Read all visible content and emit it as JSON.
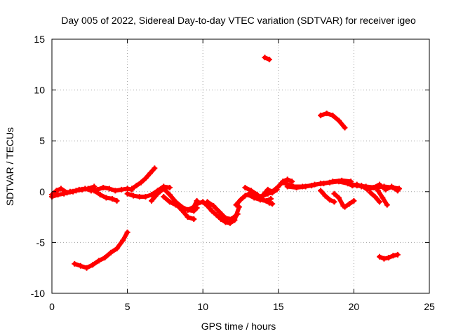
{
  "chart_data": {
    "type": "scatter",
    "title": "Day 005 of 2022, Sidereal Day-to-day VTEC variation (SDTVAR) for receiver igeo",
    "xlabel": "GPS time / hours",
    "ylabel": "SDTVAR / TECUs",
    "xlim": [
      0,
      25
    ],
    "ylim": [
      -10,
      15
    ],
    "xticks": [
      "0",
      "5",
      "10",
      "15",
      "20",
      "25"
    ],
    "yticks": [
      "-10",
      "-5",
      "0",
      "5",
      "10",
      "15"
    ],
    "grid": true,
    "series_color": "#ff0000",
    "series": [
      {
        "name": "s1",
        "x": [
          0.0,
          0.3,
          0.6,
          1.0,
          1.4,
          1.8,
          2.2,
          2.6,
          3.0,
          3.4,
          3.8,
          4.2,
          4.6,
          5.0,
          5.3
        ],
        "y": [
          -0.3,
          0.1,
          0.3,
          -0.1,
          0.0,
          0.2,
          0.3,
          0.1,
          0.2,
          0.4,
          0.3,
          0.1,
          0.2,
          0.3,
          0.2
        ]
      },
      {
        "name": "s2",
        "x": [
          0.0,
          0.4,
          0.8,
          1.2,
          1.6,
          2.0,
          2.4,
          2.8
        ],
        "y": [
          -0.5,
          -0.3,
          -0.2,
          0.0,
          0.1,
          0.2,
          0.3,
          0.5
        ]
      },
      {
        "name": "s3",
        "x": [
          2.8,
          3.2,
          3.6,
          4.0,
          4.3
        ],
        "y": [
          0.1,
          -0.3,
          -0.6,
          -0.7,
          -0.9
        ]
      },
      {
        "name": "s4",
        "x": [
          1.5,
          1.9,
          2.3,
          2.7,
          3.1,
          3.5,
          3.9,
          4.3,
          4.7,
          5.0
        ],
        "y": [
          -7.1,
          -7.3,
          -7.5,
          -7.2,
          -6.8,
          -6.5,
          -6.0,
          -5.6,
          -4.8,
          -4.0
        ]
      },
      {
        "name": "s5",
        "x": [
          5.3,
          5.6,
          5.9,
          6.2,
          6.5,
          6.8
        ],
        "y": [
          0.3,
          0.6,
          0.9,
          1.3,
          1.8,
          2.3
        ]
      },
      {
        "name": "s6",
        "x": [
          5.0,
          5.4,
          5.8,
          6.2,
          6.6,
          7.0,
          7.4,
          7.8
        ],
        "y": [
          -0.2,
          -0.4,
          -0.5,
          -0.5,
          -0.3,
          0.1,
          0.5,
          0.4
        ]
      },
      {
        "name": "s7",
        "x": [
          6.6,
          7.0,
          7.4,
          7.8,
          8.2,
          8.6,
          9.0,
          9.4,
          9.6
        ],
        "y": [
          -0.9,
          -0.2,
          0.3,
          -0.3,
          -1.0,
          -1.5,
          -1.8,
          -1.5,
          -0.9
        ]
      },
      {
        "name": "s8",
        "x": [
          7.4,
          7.8,
          8.2,
          8.6,
          9.0,
          9.4,
          9.6
        ],
        "y": [
          -0.5,
          -1.0,
          -1.3,
          -1.6,
          -1.8,
          -1.9,
          -1.6
        ]
      },
      {
        "name": "s9",
        "x": [
          8.2,
          8.6,
          9.0,
          9.4
        ],
        "y": [
          -1.2,
          -1.8,
          -2.5,
          -2.7
        ]
      },
      {
        "name": "s10",
        "x": [
          9.6,
          10.0,
          10.3,
          10.6,
          10.9,
          11.2,
          11.5,
          11.8,
          12.1,
          12.4
        ],
        "y": [
          -1.2,
          -1.0,
          -1.4,
          -1.9,
          -2.3,
          -2.7,
          -3.0,
          -3.1,
          -2.8,
          -1.5
        ]
      },
      {
        "name": "s11",
        "x": [
          10.3,
          10.7,
          11.1,
          11.5,
          11.9,
          12.3
        ],
        "y": [
          -1.0,
          -1.4,
          -2.0,
          -2.6,
          -2.7,
          -2.2
        ]
      },
      {
        "name": "s12",
        "x": [
          12.2,
          12.5,
          12.8,
          13.1,
          13.4,
          13.7,
          14.0,
          14.3,
          14.6,
          14.9
        ],
        "y": [
          -1.3,
          -0.8,
          -0.4,
          -0.2,
          -0.3,
          -0.5,
          -0.4,
          -0.2,
          -0.1,
          0.2
        ]
      },
      {
        "name": "s13",
        "x": [
          12.8,
          13.2,
          13.6,
          14.0,
          14.4,
          14.6
        ],
        "y": [
          0.4,
          0.1,
          -0.3,
          -0.8,
          -1.1,
          -1.2
        ]
      },
      {
        "name": "s14",
        "x": [
          13.0,
          13.4,
          13.8,
          14.2,
          14.5
        ],
        "y": [
          -0.3,
          -0.6,
          -0.8,
          -0.9,
          -0.7
        ]
      },
      {
        "name": "s15",
        "x": [
          14.0,
          14.3,
          14.6,
          15.0,
          15.3,
          15.6,
          15.9
        ],
        "y": [
          -0.3,
          0.2,
          0.0,
          0.5,
          1.0,
          1.2,
          1.0
        ]
      },
      {
        "name": "s16",
        "x": [
          15.3,
          16.0,
          16.6,
          17.2,
          17.8,
          18.4,
          19.0,
          19.6,
          20.2,
          20.8,
          21.4,
          22.0,
          22.6,
          23.0
        ],
        "y": [
          0.9,
          0.5,
          0.5,
          0.6,
          0.8,
          0.9,
          1.0,
          0.8,
          0.6,
          0.5,
          0.4,
          0.5,
          0.4,
          0.3
        ]
      },
      {
        "name": "s17",
        "x": [
          15.6,
          16.2,
          16.8,
          17.4,
          18.0,
          18.6,
          19.2,
          19.8
        ],
        "y": [
          0.5,
          0.4,
          0.5,
          0.7,
          0.8,
          1.0,
          1.1,
          1.0
        ]
      },
      {
        "name": "s18",
        "x": [
          17.8,
          18.1,
          18.4,
          18.7
        ],
        "y": [
          0.1,
          -0.4,
          -0.8,
          -1.0
        ]
      },
      {
        "name": "s19",
        "x": [
          18.7,
          19.0,
          19.3
        ],
        "y": [
          -0.2,
          -0.6,
          -1.4
        ]
      },
      {
        "name": "s20",
        "x": [
          19.6,
          19.9,
          20.2,
          20.5
        ],
        "y": [
          0.8,
          0.6,
          0.7,
          0.5
        ]
      },
      {
        "name": "s21",
        "x": [
          19.4,
          19.7,
          20.0
        ],
        "y": [
          -1.5,
          -1.2,
          -0.9
        ]
      },
      {
        "name": "s22",
        "x": [
          20.5,
          20.9,
          21.3,
          21.7,
          22.1,
          22.5,
          22.9
        ],
        "y": [
          0.6,
          0.2,
          0.4,
          0.7,
          0.2,
          0.5,
          0.1
        ]
      },
      {
        "name": "s23",
        "x": [
          21.1,
          21.4,
          21.7
        ],
        "y": [
          -0.1,
          -0.5,
          -1.0
        ]
      },
      {
        "name": "s24",
        "x": [
          21.6,
          21.9,
          22.2
        ],
        "y": [
          0.1,
          -0.6,
          -1.3
        ]
      },
      {
        "name": "s25",
        "x": [
          21.7,
          22.0,
          22.3,
          22.6,
          22.9
        ],
        "y": [
          -6.4,
          -6.6,
          -6.5,
          -6.3,
          -6.2
        ]
      },
      {
        "name": "s26",
        "x": [
          14.1,
          14.4
        ],
        "y": [
          13.2,
          13.0
        ]
      },
      {
        "name": "s27",
        "x": [
          17.8,
          18.2,
          18.6,
          19.0,
          19.4
        ],
        "y": [
          7.5,
          7.7,
          7.5,
          7.0,
          6.3
        ]
      }
    ]
  }
}
